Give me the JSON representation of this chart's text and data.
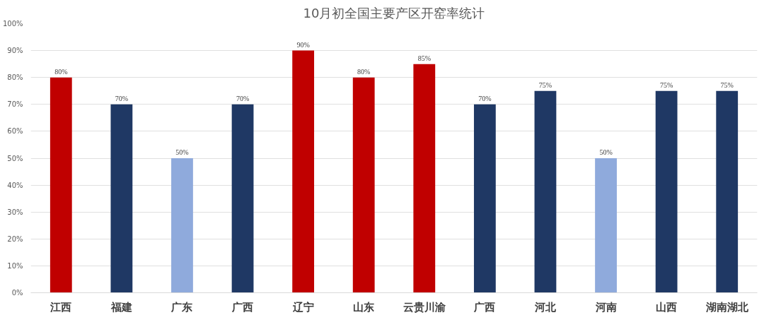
{
  "chart_data": {
    "type": "bar",
    "title": "10月初全国主要产区开窑率统计",
    "categories": [
      "江西",
      "福建",
      "广东",
      "广西",
      "辽宁",
      "山东",
      "云贵川渝",
      "广西",
      "河北",
      "河南",
      "山西",
      "湖南湖北"
    ],
    "values": [
      80,
      70,
      50,
      70,
      90,
      80,
      85,
      70,
      75,
      50,
      75,
      75
    ],
    "colors": [
      "#c00000",
      "#1f3864",
      "#8faadc",
      "#1f3864",
      "#c00000",
      "#c00000",
      "#c00000",
      "#1f3864",
      "#1f3864",
      "#8faadc",
      "#1f3864",
      "#1f3864"
    ],
    "value_labels": [
      "80%",
      "70%",
      "50%",
      "70%",
      "90%",
      "80%",
      "85%",
      "70%",
      "75%",
      "50%",
      "75%",
      "75%"
    ],
    "ylim": [
      0,
      100
    ],
    "yticks": [
      {
        "value": 0,
        "label": "0%"
      },
      {
        "value": 10,
        "label": "10%"
      },
      {
        "value": 20,
        "label": "20%"
      },
      {
        "value": 30,
        "label": "30%"
      },
      {
        "value": 40,
        "label": "40%"
      },
      {
        "value": 50,
        "label": "50%"
      },
      {
        "value": 60,
        "label": "60%"
      },
      {
        "value": 70,
        "label": "70%"
      },
      {
        "value": 80,
        "label": "80%"
      },
      {
        "value": 90,
        "label": "90%"
      },
      {
        "value": 100,
        "label": "100%"
      }
    ],
    "grid": "y"
  }
}
